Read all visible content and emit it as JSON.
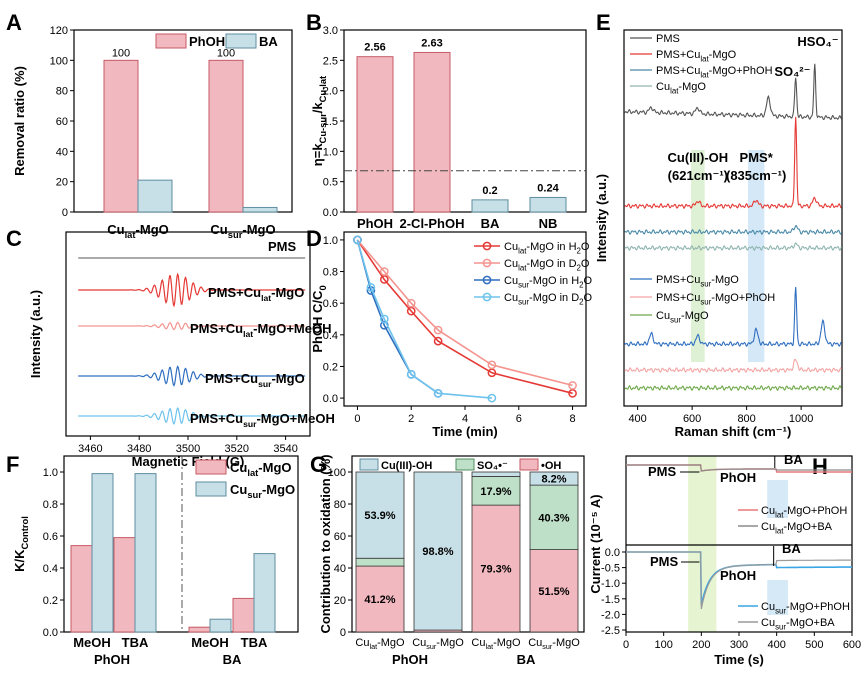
{
  "colors": {
    "pink_fill": "#f2b8bf",
    "pink_edge": "#c65a66",
    "blue_fill": "#c7dfe6",
    "blue_edge": "#5f8ea0",
    "green_fill": "#bfe0c8",
    "red": "#e53935",
    "lightred": "#f4948f",
    "blue": "#2f6fc0",
    "lightblue": "#6ec3ec",
    "green": "#6fa84a",
    "gray": "#6e6e6e"
  },
  "panels": [
    {
      "id": "A",
      "label": "A",
      "type": "bar",
      "ylabel": "Removal ratio (%)",
      "ylim": [
        0,
        120
      ],
      "yticks": [
        0,
        20,
        40,
        60,
        80,
        100,
        120
      ],
      "categories": [
        "Cu_lat-MgO",
        "Cu_sur-MgO"
      ],
      "category_labels": [
        [
          "Cu",
          "lat",
          "-MgO"
        ],
        [
          "Cu",
          "sur",
          "-MgO"
        ]
      ],
      "series": [
        {
          "name": "PhOH",
          "values": [
            100,
            100
          ],
          "labels": [
            "100",
            "100"
          ]
        },
        {
          "name": "BA",
          "values": [
            21,
            3
          ],
          "labels": [
            "",
            ""
          ]
        }
      ]
    },
    {
      "id": "B",
      "label": "B",
      "type": "bar",
      "ylabel": "η=k_Cu-sur/k_Cu-lat",
      "ylabel_parts": [
        "η=k",
        "Cu-sur",
        "/k",
        "Cu-lat"
      ],
      "ylim": [
        0,
        3.0
      ],
      "yticks": [
        0.0,
        0.5,
        1.0,
        1.5,
        2.0,
        2.5,
        3.0
      ],
      "categories": [
        "PhOH",
        "2-Cl-PhOH",
        "BA",
        "NB"
      ],
      "values": [
        2.56,
        2.63,
        0.2,
        0.24
      ],
      "labels": [
        "2.56",
        "2.63",
        "0.2",
        "0.24"
      ],
      "reference_line": 0.68
    },
    {
      "id": "C",
      "label": "C",
      "type": "line",
      "xlabel": "Magnetic Field (G)",
      "ylabel": "Intensity (a.u.)",
      "xlim": [
        3450,
        3550
      ],
      "xticks": [
        3460,
        3480,
        3500,
        3520,
        3540
      ],
      "series": [
        {
          "name": "PMS",
          "label_parts": [
            "PMS"
          ],
          "amplitude": 0
        },
        {
          "name": "PMS+Cu_lat-MgO",
          "label_parts": [
            "PMS+Cu",
            "lat",
            "-MgO"
          ],
          "amplitude": 1.0
        },
        {
          "name": "PMS+Cu_lat-MgO+MeOH",
          "label_parts": [
            "PMS+Cu",
            "lat",
            "-MgO+MeOH"
          ],
          "amplitude": 0.22
        },
        {
          "name": "PMS+Cu_sur-MgO",
          "label_parts": [
            "PMS+Cu",
            "sur",
            "-MgO"
          ],
          "amplitude": 0.6
        },
        {
          "name": "PMS+Cu_sur-MgO+MeOH",
          "label_parts": [
            "PMS+Cu",
            "sur",
            "-MgO+MeOH"
          ],
          "amplitude": 0.5
        }
      ]
    },
    {
      "id": "D",
      "label": "D",
      "type": "line",
      "xlabel": "Time (min)",
      "ylabel": "PhOH C/C_0",
      "ylabel_parts": [
        "PhOH C/C",
        "0"
      ],
      "xlim": [
        -0.5,
        8.5
      ],
      "ylim": [
        -0.05,
        1.05
      ],
      "xticks": [
        0,
        2,
        4,
        6,
        8
      ],
      "yticks": [
        0.0,
        0.2,
        0.4,
        0.6,
        0.8,
        1.0
      ],
      "series": [
        {
          "name": "Cu_lat-MgO in H2O",
          "label_parts": [
            "Cu",
            "lat",
            "-MgO in H",
            "2",
            "O"
          ],
          "x": [
            0,
            1,
            2,
            3,
            5,
            8
          ],
          "y": [
            1.0,
            0.75,
            0.55,
            0.36,
            0.16,
            0.03
          ]
        },
        {
          "name": "Cu_lat-MgO in D2O",
          "label_parts": [
            "Cu",
            "lat",
            "-MgO in D",
            "2",
            "O"
          ],
          "x": [
            0,
            1,
            2,
            3,
            5,
            8
          ],
          "y": [
            1.0,
            0.8,
            0.6,
            0.43,
            0.21,
            0.08
          ]
        },
        {
          "name": "Cu_sur-MgO in H2O",
          "label_parts": [
            "Cu",
            "sur",
            "-MgO in H",
            "2",
            "O"
          ],
          "x": [
            0,
            0.5,
            1,
            2,
            3
          ],
          "y": [
            1.0,
            0.68,
            0.46,
            0.15,
            0.03
          ]
        },
        {
          "name": "Cu_sur-MgO in D2O",
          "label_parts": [
            "Cu",
            "sur",
            "-MgO in D",
            "2",
            "O"
          ],
          "x": [
            0,
            0.5,
            1,
            2,
            3,
            5
          ],
          "y": [
            1.0,
            0.7,
            0.5,
            0.15,
            0.03,
            0.0
          ]
        }
      ]
    },
    {
      "id": "E",
      "label": "E",
      "type": "line",
      "xlabel": "Raman shift (cm⁻¹)",
      "ylabel": "Intensity (a.u.)",
      "xlim": [
        350,
        1150
      ],
      "xticks": [
        400,
        600,
        800,
        1000
      ],
      "bands": [
        {
          "name": "Cu(III)-OH",
          "label": "Cu(III)-OH",
          "sublabel": "(621cm⁻¹)",
          "center": 621,
          "width": 50
        },
        {
          "name": "PMS*",
          "label": "PMS*",
          "sublabel": "(835cm⁻¹)",
          "center": 835,
          "width": 60
        }
      ],
      "peak_labels": [
        "SO₄²⁻",
        "HSO₄⁻"
      ],
      "series": [
        {
          "name": "PMS",
          "label_parts": [
            "PMS"
          ]
        },
        {
          "name": "PMS+Cu_lat-MgO",
          "label_parts": [
            "PMS+Cu",
            "lat",
            "-MgO"
          ]
        },
        {
          "name": "PMS+Cu_lat-MgO+PhOH",
          "label_parts": [
            "PMS+Cu",
            "lat",
            "-MgO+PhOH"
          ]
        },
        {
          "name": "Cu_lat-MgO",
          "label_parts": [
            "Cu",
            "lat",
            "-MgO"
          ]
        },
        {
          "name": "PMS+Cu_sur-MgO",
          "label_parts": [
            "PMS+Cu",
            "sur",
            "-MgO"
          ]
        },
        {
          "name": "PMS+Cu_sur-MgO+PhOH",
          "label_parts": [
            "PMS+Cu",
            "sur",
            "-MgO+PhOH"
          ]
        },
        {
          "name": "Cu_sur-MgO",
          "label_parts": [
            "Cu",
            "sur",
            "-MgO"
          ]
        }
      ]
    },
    {
      "id": "F",
      "label": "F",
      "type": "bar",
      "ylabel": "K/K_Control",
      "ylabel_parts": [
        "K/K",
        "Control"
      ],
      "ylim": [
        0,
        1.1
      ],
      "yticks": [
        0.0,
        0.2,
        0.4,
        0.6,
        0.8,
        1.0
      ],
      "groups": [
        "PhOH",
        "BA"
      ],
      "categories": [
        "MeOH",
        "TBA",
        "MeOH",
        "TBA"
      ],
      "series": [
        {
          "name": "Cu_lat-MgO",
          "label_parts": [
            "Cu",
            "lat",
            "-MgO"
          ],
          "values": [
            0.54,
            0.59,
            0.03,
            0.21
          ]
        },
        {
          "name": "Cu_sur-MgO",
          "label_parts": [
            "Cu",
            "sur",
            "-MgO"
          ],
          "values": [
            0.99,
            0.99,
            0.08,
            0.49
          ]
        }
      ]
    },
    {
      "id": "G",
      "label": "G",
      "type": "bar",
      "ylabel": "Contribution to oxidation (%)",
      "ylim": [
        0,
        110
      ],
      "yticks": [
        0,
        20,
        40,
        60,
        80,
        100
      ],
      "groups": [
        "PhOH",
        "BA"
      ],
      "categories": [
        "Cu_lat-MgO",
        "Cu_sur-MgO",
        "Cu_lat-MgO",
        "Cu_sur-MgO"
      ],
      "category_labels": [
        [
          "Cu",
          "lat",
          "-MgO"
        ],
        [
          "Cu",
          "sur",
          "-MgO"
        ],
        [
          "Cu",
          "lat",
          "-MgO"
        ],
        [
          "Cu",
          "sur",
          "-MgO"
        ]
      ],
      "series": [
        {
          "name": "•OH",
          "label": "•OH",
          "values": [
            41.2,
            1.2,
            79.3,
            51.5
          ],
          "labels": [
            "41.2%",
            "",
            "79.3%",
            "51.5%"
          ]
        },
        {
          "name": "SO4•-",
          "label": "SO₄•⁻",
          "values": [
            4.9,
            0.0,
            17.9,
            40.3
          ],
          "labels": [
            "",
            "",
            "17.9%",
            "40.3%"
          ]
        },
        {
          "name": "Cu(III)-OH",
          "label": "Cu(III)-OH",
          "values": [
            53.9,
            98.8,
            2.8,
            8.2
          ],
          "labels": [
            "53.9%",
            "98.8%",
            "",
            "8.2%"
          ]
        }
      ]
    },
    {
      "id": "H",
      "label": "H",
      "type": "line",
      "xlabel": "Time (s)",
      "ylabel": "Current (10⁻⁵ A)",
      "xlim": [
        0,
        600
      ],
      "xticks": [
        0,
        100,
        200,
        300,
        400,
        500,
        600
      ],
      "yticks": [
        0.0,
        -0.5,
        -1.0,
        -1.5,
        -2.0,
        -2.5
      ],
      "annotations": [
        "PMS",
        "PhOH",
        "BA",
        "PMS",
        "PhOH",
        "BA"
      ],
      "series": [
        {
          "name": "Cu_lat-MgO+PhOH",
          "label_parts": [
            "Cu",
            "lat",
            "-MgO+PhOH"
          ]
        },
        {
          "name": "Cu_lat-MgO+BA",
          "label_parts": [
            "Cu",
            "lat",
            "-MgO+BA"
          ]
        },
        {
          "name": "Cu_sur-MgO+PhOH",
          "label_parts": [
            "Cu",
            "sur",
            "-MgO+PhOH"
          ]
        },
        {
          "name": "Cu_sur-MgO+BA",
          "label_parts": [
            "Cu",
            "sur",
            "-MgO+BA"
          ]
        }
      ]
    }
  ]
}
